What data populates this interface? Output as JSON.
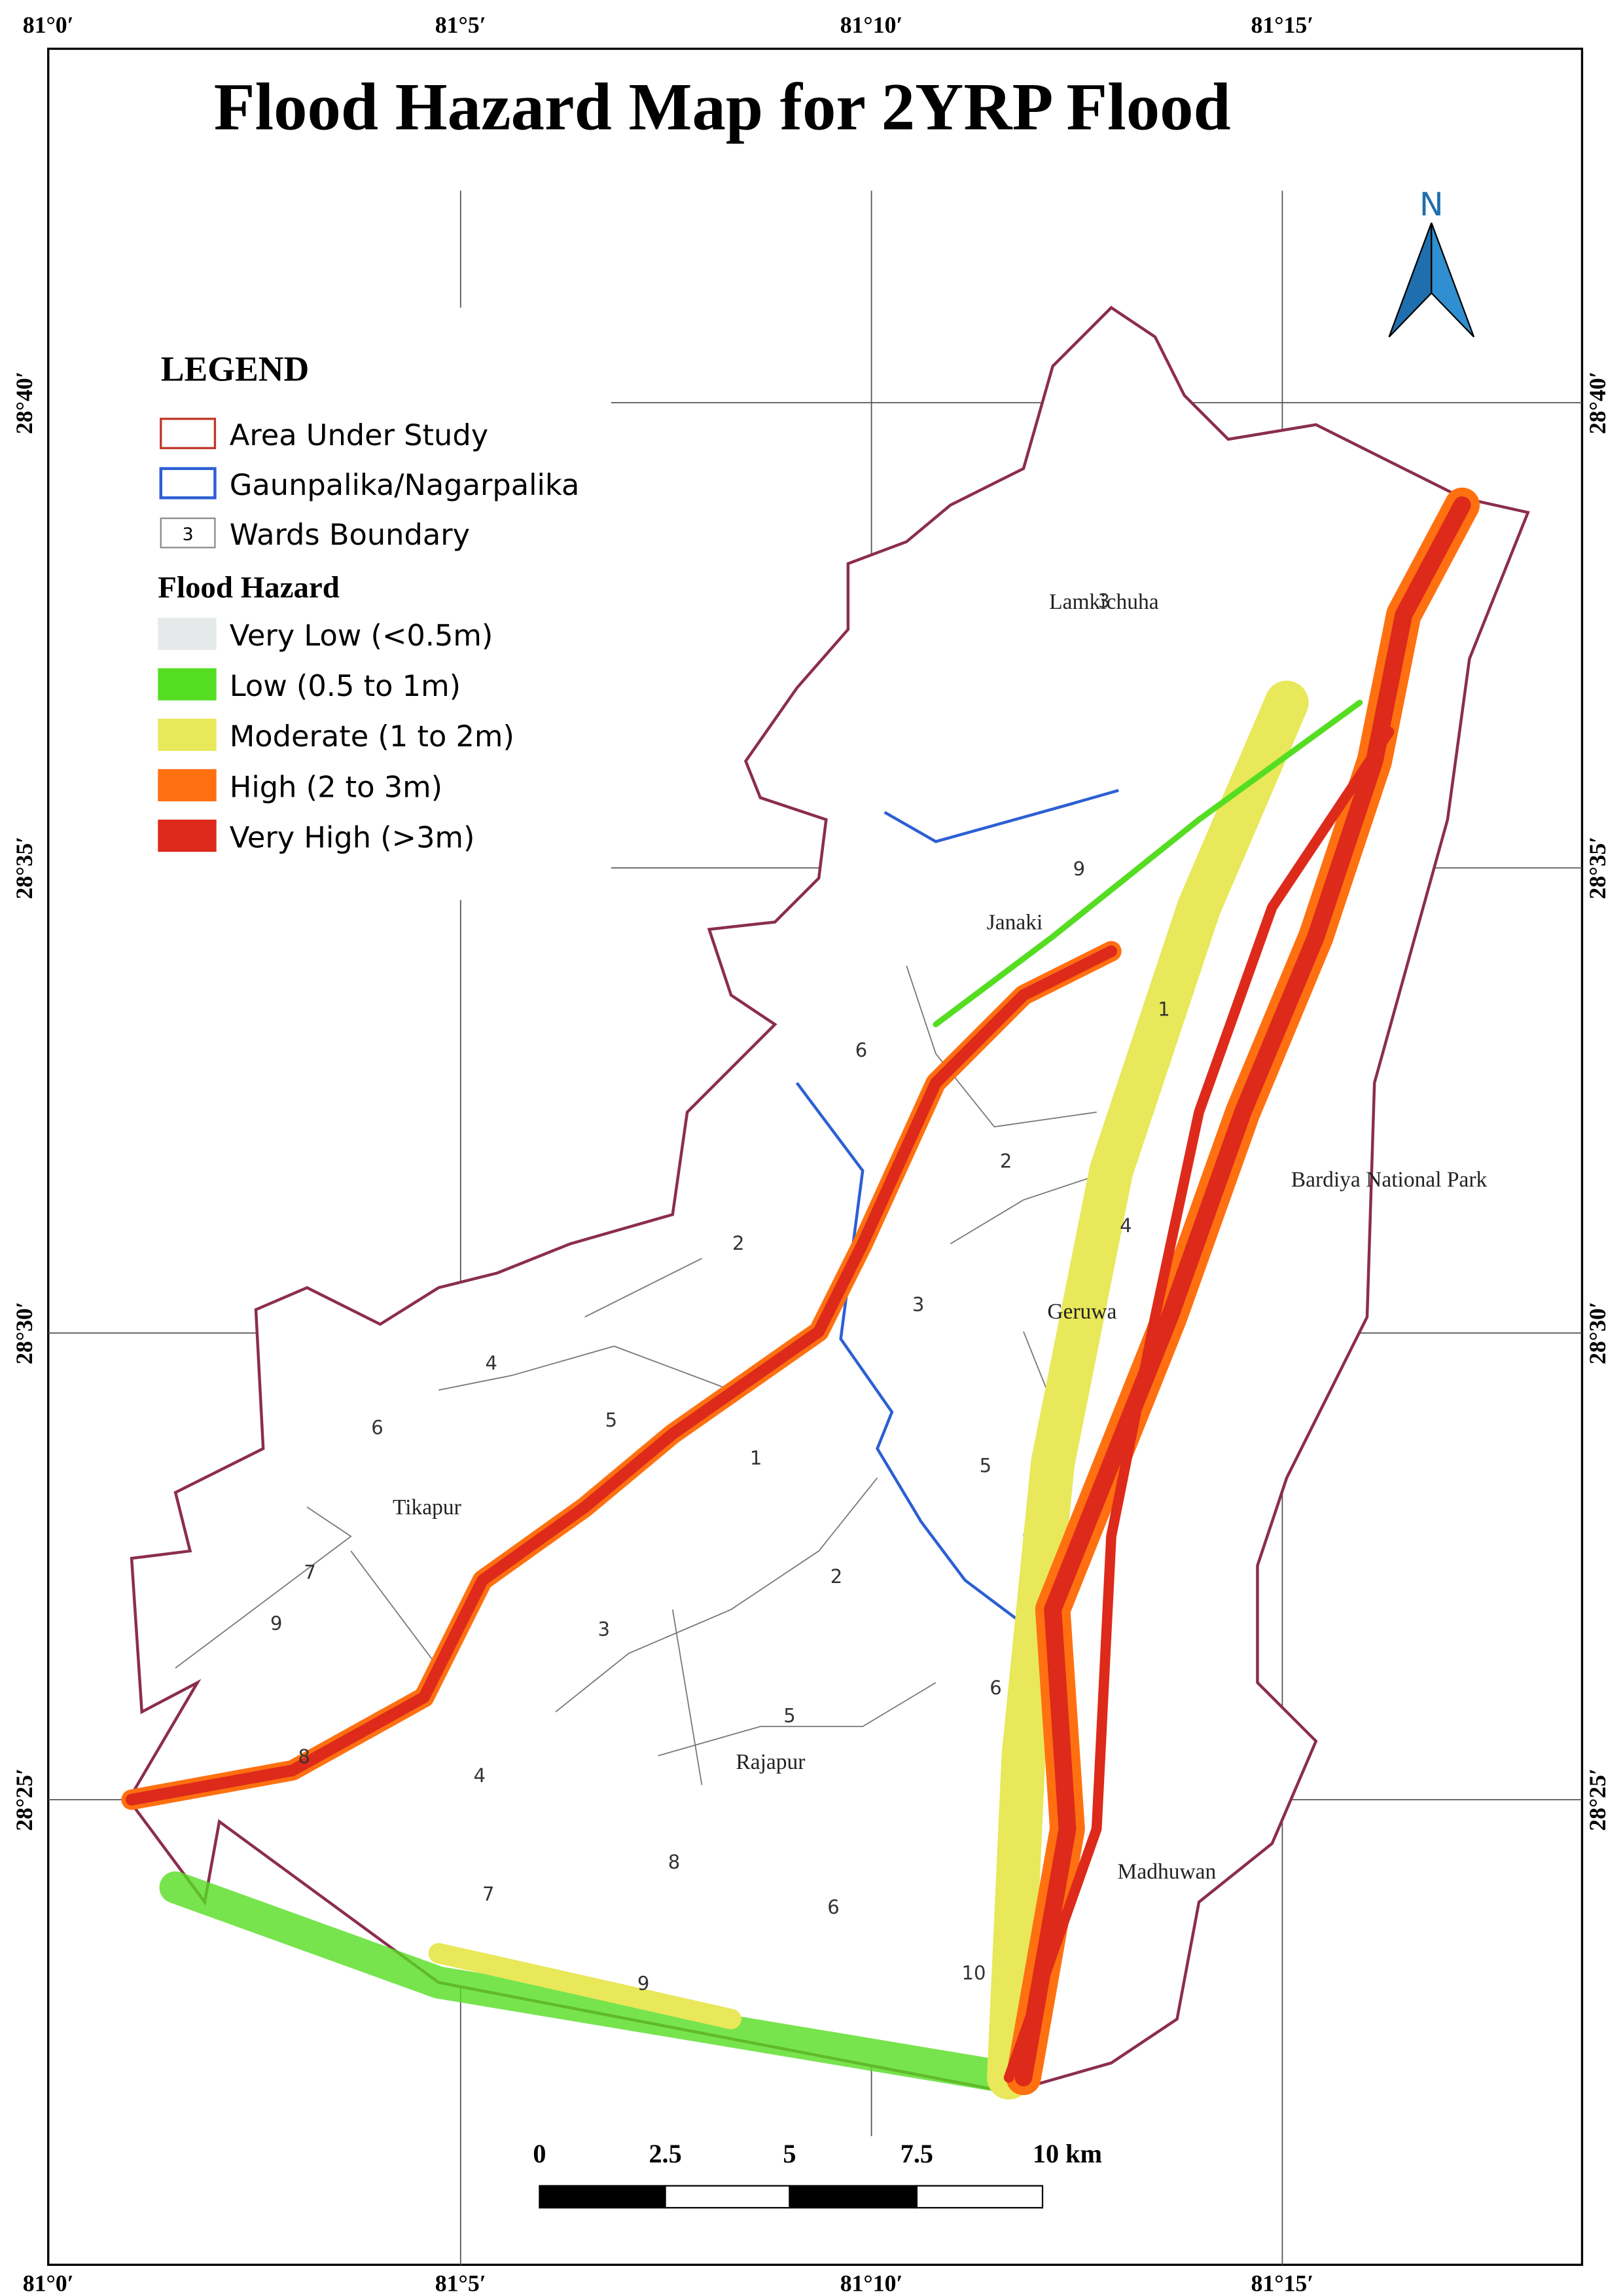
{
  "header": {
    "title": "Flood Hazard Map for 2YRP Flood"
  },
  "graticule": {
    "top": [
      "81°0′",
      "81°5′",
      "81°10′",
      "81°15′"
    ],
    "bottom": [
      "81°0′",
      "81°5′",
      "81°10′",
      "81°15′"
    ],
    "left": [
      "28°40′",
      "28°35′",
      "28°30′",
      "28°25′"
    ],
    "right": [
      "28°40′",
      "28°35′",
      "28°30′",
      "28°25′"
    ]
  },
  "north": "N",
  "legend": {
    "title": "LEGEND",
    "items": [
      {
        "label": "Area Under Study"
      },
      {
        "label": "Gaunpalika/Nagarpalika"
      },
      {
        "label": "Wards Boundary",
        "symbol": "3"
      }
    ],
    "hazard_title": "Flood Hazard",
    "hazard_items": [
      {
        "label": "Very Low (<0.5m)",
        "color": "#e6e9ea"
      },
      {
        "label": "Low (0.5 to 1m)",
        "color": "#55dd22"
      },
      {
        "label": "Moderate (1 to 2m)",
        "color": "#e8e85a"
      },
      {
        "label": "High (2 to 3m)",
        "color": "#ff7010"
      },
      {
        "label": "Very High (>3m)",
        "color": "#dd2a1a"
      }
    ]
  },
  "places": [
    "Lamkichuha",
    "Janaki",
    "Bardiya National Park",
    "Geruwa",
    "Tikapur",
    "Rajapur",
    "Madhuwan"
  ],
  "wards": [
    "3",
    "9",
    "1",
    "6",
    "2",
    "4",
    "2",
    "3",
    "4",
    "5",
    "6",
    "1",
    "5",
    "7",
    "2",
    "9",
    "3",
    "6",
    "5",
    "8",
    "4",
    "7",
    "8",
    "6",
    "9",
    "10"
  ],
  "scale_bar": [
    "0",
    "2.5",
    "5",
    "7.5",
    "10 km"
  ]
}
